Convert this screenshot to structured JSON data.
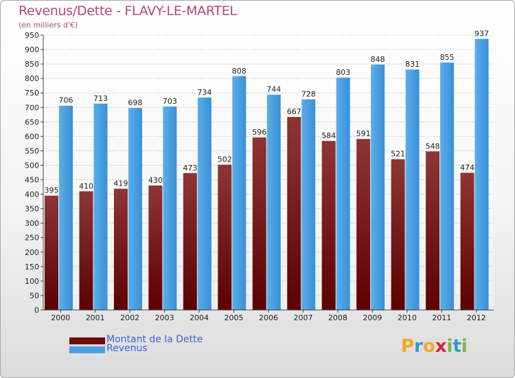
{
  "title": "Revenus/Dette - FLAVY-LE-MARTEL",
  "subtitle": "(en milliers d'€)",
  "logo": {
    "text": "Proxiti",
    "letters": [
      "P",
      "r",
      "o",
      "x",
      "i",
      "t",
      "i"
    ],
    "colors": [
      "#f5a623",
      "#2e9bd6",
      "#f5a623",
      "#d7263d",
      "#7cb342",
      "#2e9bd6",
      "#7cb342"
    ]
  },
  "colors": {
    "dette": "#6b0d0d",
    "dette_light": "#8b3a3a",
    "revenus": "#5aa9e6",
    "revenus_dark": "#2f7fc4",
    "title": "#b5467a",
    "legend_text": "#3f62d9"
  },
  "chart_data": {
    "type": "bar",
    "title": "Revenus/Dette - FLAVY-LE-MARTEL",
    "ylabel": "(en milliers d'€)",
    "categories": [
      "2000",
      "2001",
      "2002",
      "2003",
      "2004",
      "2005",
      "2006",
      "2007",
      "2008",
      "2009",
      "2010",
      "2011",
      "2012"
    ],
    "series": [
      {
        "name": "Montant de la Dette",
        "values": [
          395,
          410,
          419,
          430,
          473,
          502,
          596,
          667,
          584,
          591,
          521,
          548,
          474
        ],
        "labels": [
          "395",
          "410",
          "419",
          "430",
          "473",
          "502",
          "596",
          "667",
          "584",
          "591",
          "521",
          "548",
          "474"
        ]
      },
      {
        "name": "Revenus",
        "values": [
          706,
          713,
          698,
          703,
          734,
          808,
          744,
          728,
          803,
          848,
          831,
          855,
          937
        ],
        "labels": [
          "706",
          "713",
          "698",
          "703",
          "734",
          "808",
          "744",
          "728",
          "803",
          "848",
          "831",
          "855",
          "937"
        ]
      }
    ],
    "ylim": [
      0,
      950
    ],
    "ytick_step": 50,
    "yticks": [
      "0",
      "50",
      "100",
      "150",
      "200",
      "250",
      "300",
      "350",
      "400",
      "450",
      "500",
      "550",
      "600",
      "650",
      "700",
      "750",
      "800",
      "850",
      "900",
      "950"
    ],
    "grid": true,
    "legend": "bottom-left"
  }
}
